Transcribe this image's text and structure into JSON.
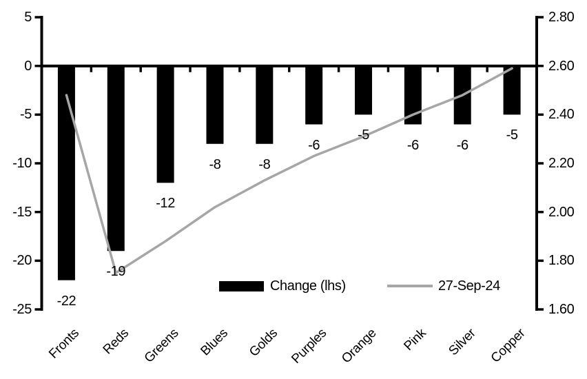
{
  "chart_data": {
    "type": "combo",
    "title": "",
    "categories": [
      "Fronts",
      "Reds",
      "Greens",
      "Blues",
      "Golds",
      "Purples",
      "Orange",
      "Pink",
      "Silver",
      "Copper"
    ],
    "series": [
      {
        "name": "Change (lhs)",
        "type": "bar",
        "axis": "left",
        "color": "#000000",
        "values": [
          -22,
          -19,
          -12,
          -8,
          -8,
          -6,
          -5,
          -6,
          -6,
          -5
        ],
        "data_labels": [
          "-22",
          "-19",
          "-12",
          "-8",
          "-8",
          "-6",
          "-5",
          "-6",
          "-6",
          "-5"
        ]
      },
      {
        "name": "27-Sep-24",
        "type": "line",
        "axis": "right",
        "color": "#a6a6a6",
        "values": [
          2.48,
          1.75,
          1.88,
          2.02,
          2.13,
          2.23,
          2.31,
          2.4,
          2.48,
          2.59
        ]
      }
    ],
    "left_axis": {
      "min": -25,
      "max": 5,
      "interval": 5,
      "ticks": [
        "5",
        "0",
        "-5",
        "-10",
        "-15",
        "-20",
        "-25"
      ]
    },
    "right_axis": {
      "min": 1.6,
      "max": 2.8,
      "interval": 0.2,
      "ticks": [
        "2.80",
        "2.60",
        "2.40",
        "2.20",
        "2.00",
        "1.80",
        "1.60"
      ]
    },
    "grid": false,
    "legend_position": "bottom-inside",
    "axis_color": "#000000",
    "background_color": "#ffffff"
  }
}
